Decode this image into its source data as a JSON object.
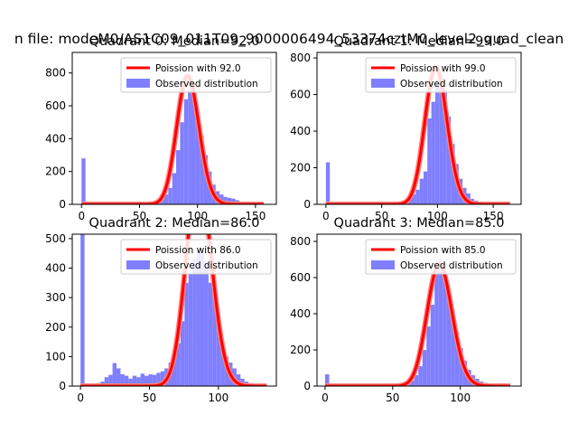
{
  "figure": {
    "suptitle": "n file: modeM0/AS1C09_011T09_9000006494_53374cztM0_level2_quad_clean"
  },
  "colors": {
    "hist": "#7f7fff",
    "line": "#ff0000",
    "line_glow": "#ff7f7f",
    "axis": "#000000"
  },
  "chart_data": [
    {
      "type": "bar",
      "title": "Quadrant 0: Median=92.0",
      "xlim": [
        -8,
        168
      ],
      "ylim": [
        0,
        925
      ],
      "xticks": [
        0,
        50,
        100,
        150
      ],
      "yticks": [
        0,
        200,
        400,
        600,
        800
      ],
      "bin_width": 3.4,
      "legend": {
        "position": "top-right",
        "line_label": "Poission with 92.0",
        "hist_label": "Observed distribution"
      },
      "poisson_mean": 92.0,
      "line_x_range": [
        0,
        157
      ],
      "series": [
        {
          "name": "Observed distribution",
          "bins": [
            [
              0,
              280
            ],
            [
              3.4,
              5
            ],
            [
              6.8,
              3
            ],
            [
              10.2,
              5
            ],
            [
              13.6,
              3
            ],
            [
              17,
              4
            ],
            [
              20.4,
              5
            ],
            [
              23.8,
              6
            ],
            [
              27.2,
              8
            ],
            [
              30.6,
              6
            ],
            [
              34,
              7
            ],
            [
              37.4,
              8
            ],
            [
              40.8,
              6
            ],
            [
              44.2,
              9
            ],
            [
              47.6,
              8
            ],
            [
              51,
              10
            ],
            [
              54.4,
              12
            ],
            [
              57.8,
              9
            ],
            [
              61.2,
              14
            ],
            [
              64.6,
              18
            ],
            [
              68,
              30
            ],
            [
              71.4,
              60
            ],
            [
              74.8,
              100
            ],
            [
              78.2,
              190
            ],
            [
              81.6,
              330
            ],
            [
              85,
              500
            ],
            [
              88.4,
              640
            ],
            [
              91.8,
              700
            ],
            [
              95.2,
              640
            ],
            [
              98.6,
              560
            ],
            [
              102,
              420
            ],
            [
              105.4,
              300
            ],
            [
              108.8,
              200
            ],
            [
              112.2,
              120
            ],
            [
              115.6,
              80
            ],
            [
              119,
              60
            ],
            [
              122.4,
              45
            ],
            [
              125.8,
              40
            ],
            [
              129.2,
              35
            ],
            [
              132.6,
              25
            ],
            [
              136,
              10
            ],
            [
              139.4,
              5
            ],
            [
              142.8,
              3
            ],
            [
              146.2,
              4
            ],
            [
              149.6,
              2
            ],
            [
              153,
              2
            ],
            [
              156.4,
              1
            ]
          ]
        }
      ]
    },
    {
      "type": "bar",
      "title": "Quadrant 1: Median=99.0",
      "xlim": [
        -8,
        175
      ],
      "ylim": [
        0,
        830
      ],
      "xticks": [
        0,
        50,
        100,
        150
      ],
      "yticks": [
        0,
        200,
        400,
        600,
        800
      ],
      "bin_width": 3.5,
      "legend": {
        "position": "top-right",
        "line_label": "Poission with 99.0",
        "hist_label": "Observed distribution"
      },
      "poisson_mean": 99.0,
      "line_x_range": [
        0,
        165
      ],
      "series": [
        {
          "name": "Observed distribution",
          "bins": [
            [
              0,
              230
            ],
            [
              3.5,
              5
            ],
            [
              7,
              4
            ],
            [
              10.5,
              6
            ],
            [
              14,
              5
            ],
            [
              17.5,
              8
            ],
            [
              21,
              7
            ],
            [
              24.5,
              12
            ],
            [
              28,
              10
            ],
            [
              31.5,
              15
            ],
            [
              35,
              12
            ],
            [
              38.5,
              10
            ],
            [
              42,
              12
            ],
            [
              45.5,
              10
            ],
            [
              49,
              14
            ],
            [
              52.5,
              12
            ],
            [
              56,
              10
            ],
            [
              59.5,
              10
            ],
            [
              63,
              12
            ],
            [
              66.5,
              15
            ],
            [
              70,
              20
            ],
            [
              73.5,
              30
            ],
            [
              77,
              55
            ],
            [
              80.5,
              80
            ],
            [
              84,
              140
            ],
            [
              87.5,
              180
            ],
            [
              91,
              470
            ],
            [
              94.5,
              560
            ],
            [
              98,
              660
            ],
            [
              101.5,
              680
            ],
            [
              105,
              630
            ],
            [
              108.5,
              480
            ],
            [
              112,
              330
            ],
            [
              115.5,
              220
            ],
            [
              119,
              140
            ],
            [
              122.5,
              90
            ],
            [
              126,
              60
            ],
            [
              129.5,
              30
            ],
            [
              133,
              20
            ],
            [
              136.5,
              15
            ],
            [
              140,
              10
            ],
            [
              143.5,
              8
            ],
            [
              147,
              6
            ],
            [
              150.5,
              4
            ],
            [
              154,
              3
            ],
            [
              157.5,
              2
            ]
          ]
        }
      ]
    },
    {
      "type": "bar",
      "title": "Quadrant 2: Median=86.0",
      "xlim": [
        -6,
        142
      ],
      "ylim": [
        0,
        515
      ],
      "xticks": [
        0,
        50,
        100
      ],
      "yticks": [
        0,
        100,
        200,
        300,
        400,
        500
      ],
      "bin_width": 2.9,
      "legend": {
        "position": "top-right",
        "line_label": "Poission with 86.0",
        "hist_label": "Observed distribution"
      },
      "poisson_mean": 86.0,
      "line_x_range": [
        0,
        135
      ],
      "series": [
        {
          "name": "Observed distribution",
          "bins": [
            [
              0,
              515
            ],
            [
              2.9,
              8
            ],
            [
              5.8,
              6
            ],
            [
              8.7,
              8
            ],
            [
              11.6,
              10
            ],
            [
              14.5,
              15
            ],
            [
              17.4,
              30
            ],
            [
              20.3,
              38
            ],
            [
              23.2,
              78
            ],
            [
              26.1,
              60
            ],
            [
              29,
              40
            ],
            [
              31.9,
              35
            ],
            [
              34.8,
              25
            ],
            [
              37.7,
              35
            ],
            [
              40.6,
              30
            ],
            [
              43.5,
              42
            ],
            [
              46.4,
              35
            ],
            [
              49.3,
              40
            ],
            [
              52.2,
              38
            ],
            [
              55.1,
              45
            ],
            [
              58,
              50
            ],
            [
              60.9,
              60
            ],
            [
              63.8,
              80
            ],
            [
              66.7,
              100
            ],
            [
              69.6,
              145
            ],
            [
              72.5,
              220
            ],
            [
              75.4,
              350
            ],
            [
              78.3,
              380
            ],
            [
              81.2,
              430
            ],
            [
              84.1,
              460
            ],
            [
              87,
              450
            ],
            [
              89.9,
              420
            ],
            [
              92.8,
              350
            ],
            [
              95.7,
              310
            ],
            [
              98.6,
              220
            ],
            [
              101.5,
              140
            ],
            [
              104.4,
              100
            ],
            [
              107.3,
              80
            ],
            [
              110.2,
              60
            ],
            [
              113.1,
              40
            ],
            [
              116,
              25
            ],
            [
              118.9,
              15
            ],
            [
              121.8,
              10
            ],
            [
              124.7,
              5
            ],
            [
              127.6,
              3
            ],
            [
              130.5,
              2
            ]
          ]
        }
      ]
    },
    {
      "type": "bar",
      "title": "Quadrant 3: Median=85.0",
      "xlim": [
        -6,
        145
      ],
      "ylim": [
        0,
        840
      ],
      "xticks": [
        0,
        50,
        100
      ],
      "yticks": [
        0,
        200,
        400,
        600,
        800
      ],
      "bin_width": 3.0,
      "legend": {
        "position": "top-right",
        "line_label": "Poission with 85.0",
        "hist_label": "Observed distribution"
      },
      "poisson_mean": 85.0,
      "line_x_range": [
        0,
        137
      ],
      "series": [
        {
          "name": "Observed distribution",
          "bins": [
            [
              0,
              65
            ],
            [
              3,
              4
            ],
            [
              6,
              3
            ],
            [
              9,
              3
            ],
            [
              12,
              4
            ],
            [
              15,
              3
            ],
            [
              18,
              4
            ],
            [
              21,
              3
            ],
            [
              24,
              4
            ],
            [
              27,
              3
            ],
            [
              30,
              3
            ],
            [
              33,
              4
            ],
            [
              36,
              3
            ],
            [
              39,
              4
            ],
            [
              42,
              5
            ],
            [
              45,
              5
            ],
            [
              48,
              6
            ],
            [
              51,
              8
            ],
            [
              54,
              10
            ],
            [
              57,
              15
            ],
            [
              60,
              20
            ],
            [
              63,
              30
            ],
            [
              66,
              60
            ],
            [
              69,
              110
            ],
            [
              72,
              200
            ],
            [
              75,
              330
            ],
            [
              78,
              450
            ],
            [
              81,
              640
            ],
            [
              84,
              700
            ],
            [
              87,
              620
            ],
            [
              90,
              540
            ],
            [
              93,
              420
            ],
            [
              96,
              300
            ],
            [
              99,
              210
            ],
            [
              102,
              140
            ],
            [
              105,
              90
            ],
            [
              108,
              60
            ],
            [
              111,
              40
            ],
            [
              114,
              25
            ],
            [
              117,
              18
            ],
            [
              120,
              10
            ],
            [
              123,
              6
            ],
            [
              126,
              4
            ],
            [
              129,
              2
            ],
            [
              132,
              2
            ]
          ]
        }
      ]
    }
  ]
}
